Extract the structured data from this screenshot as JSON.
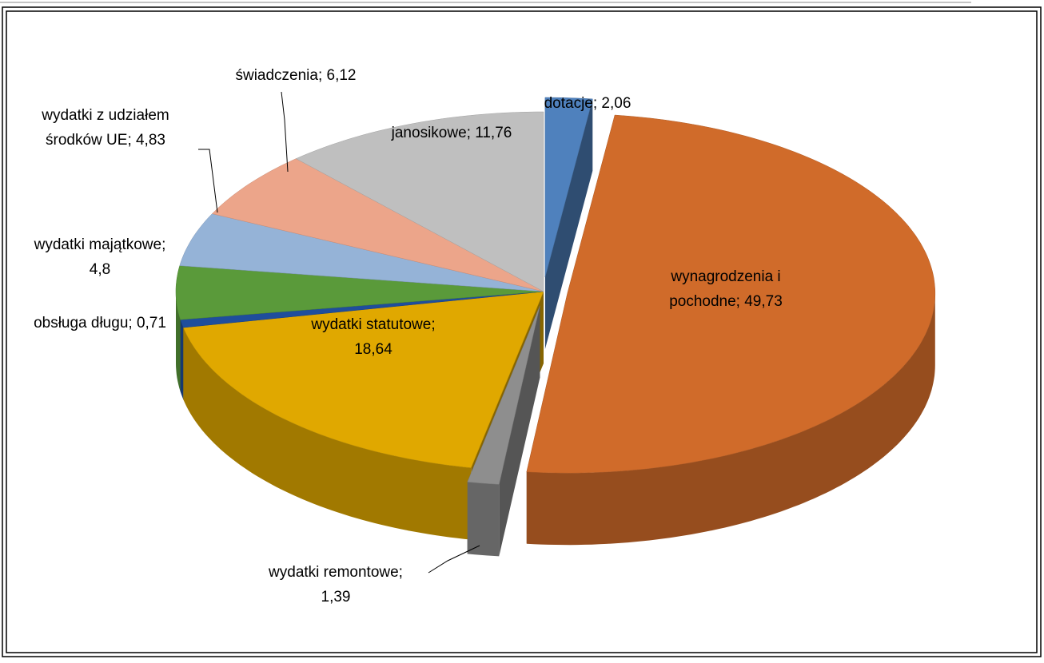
{
  "chart_data": {
    "type": "pie3d",
    "labels": [
      "dotacje; 2,06",
      "wynagrodzenia i\npochodne; 49,73",
      "wydatki remontowe;\n1,39",
      "wydatki statutowe;\n18,64",
      "obsługa długu; 0,71",
      "wydatki majątkowe;\n4,8",
      "wydatki z udziałem\nśrodków UE; 4,83",
      "świadczenia; 6,12",
      "janosikowe; 11,76"
    ],
    "values": [
      2.06,
      49.73,
      1.39,
      18.64,
      0.71,
      4.8,
      4.83,
      6.12,
      11.76
    ],
    "colors": [
      "#4f81bd",
      "#d06b2a",
      "#8e8e8e",
      "#e0a800",
      "#1f4e9c",
      "#5a9a3a",
      "#95b3d7",
      "#eca58a",
      "#bfbfbf"
    ],
    "exploded": [
      true,
      true,
      true,
      false,
      false,
      false,
      false,
      false,
      false
    ]
  }
}
